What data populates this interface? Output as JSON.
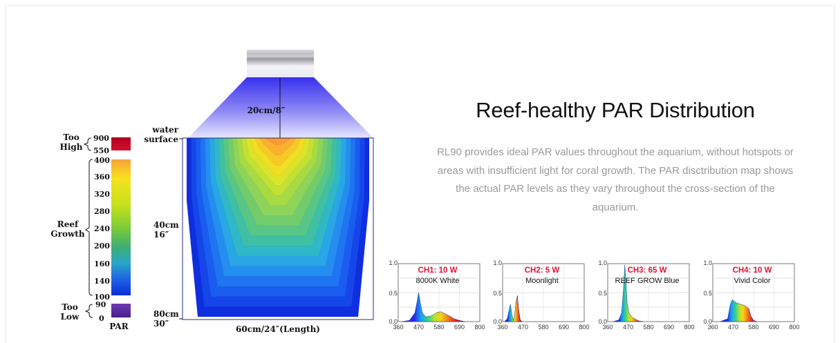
{
  "heading": "Reef-healthy PAR Distribution",
  "description": "RL90 provides ideal PAR values throughout the aquarium, without hotspots or areas with insufficient light for coral growth. The PAR disctribution map shows the actual PAR levels as they vary throughout the cross-section of the aquarium.",
  "scale": {
    "too_high": [
      "Too",
      "High"
    ],
    "reef_growth": [
      "Reef",
      "Growth"
    ],
    "too_low": [
      "Too",
      "Low"
    ],
    "par_label": "PAR",
    "high_ticks": [
      "900",
      "550"
    ],
    "growth_ticks": [
      "400",
      "360",
      "320",
      "280",
      "240",
      "200",
      "160",
      "140",
      "100"
    ],
    "low_ticks": [
      "90",
      "0"
    ]
  },
  "tank": {
    "distance_label": "20cm/8″",
    "water_surface": [
      "water",
      "surface"
    ],
    "depth_mid": [
      "40cm",
      "16″"
    ],
    "depth_bottom": [
      "80cm",
      "30″"
    ],
    "length_label": "60cm/24″(Length)"
  },
  "chart_data": [
    {
      "type": "line",
      "title": "CH1: 10 W",
      "subtitle": "8000K White",
      "x_ticks": [
        "360",
        "470",
        "580",
        "690",
        "800"
      ],
      "y_ticks": [
        "1.0",
        "0.5",
        "0.0"
      ],
      "xlim": [
        360,
        800
      ],
      "ylim": [
        0,
        1.0
      ],
      "x": [
        380,
        420,
        450,
        462,
        470,
        478,
        490,
        510,
        540,
        570,
        590,
        610,
        640,
        660,
        690,
        720
      ],
      "y": [
        0,
        0.02,
        0.15,
        0.35,
        0.5,
        0.35,
        0.15,
        0.08,
        0.1,
        0.16,
        0.17,
        0.14,
        0.09,
        0.05,
        0.02,
        0
      ]
    },
    {
      "type": "line",
      "title": "CH2: 5 W",
      "subtitle": "Moonlight",
      "x_ticks": [
        "360",
        "470",
        "580",
        "690",
        "800"
      ],
      "y_ticks": [
        "1.0",
        "0.5",
        "0.0"
      ],
      "xlim": [
        360,
        800
      ],
      "ylim": [
        0,
        1.0
      ],
      "x": [
        370,
        385,
        395,
        402,
        410,
        418,
        425,
        432,
        440,
        447,
        455,
        465
      ],
      "y": [
        0,
        0.05,
        0.2,
        0.3,
        0.12,
        0.02,
        0.1,
        0.35,
        0.45,
        0.2,
        0.03,
        0
      ]
    },
    {
      "type": "line",
      "title": "CH3: 65 W",
      "subtitle": "REEF GROW Blue",
      "x_ticks": [
        "360",
        "470",
        "580",
        "690",
        "800"
      ],
      "y_ticks": [
        "1.0",
        "0.5",
        "0.0"
      ],
      "xlim": [
        360,
        800
      ],
      "ylim": [
        0,
        1.0
      ],
      "x": [
        390,
        420,
        435,
        445,
        452,
        458,
        465,
        475,
        490,
        510,
        530,
        550
      ],
      "y": [
        0,
        0.03,
        0.15,
        0.55,
        0.98,
        0.7,
        0.3,
        0.15,
        0.08,
        0.04,
        0.01,
        0
      ]
    },
    {
      "type": "line",
      "title": "CH4: 10 W",
      "subtitle": "Vivid Color",
      "x_ticks": [
        "360",
        "470",
        "580",
        "690",
        "800"
      ],
      "y_ticks": [
        "1.0",
        "0.5",
        "0.0"
      ],
      "xlim": [
        360,
        800
      ],
      "ylim": [
        0,
        1.0
      ],
      "x": [
        400,
        440,
        455,
        465,
        475,
        490,
        510,
        530,
        545,
        555,
        565,
        580,
        600
      ],
      "y": [
        0,
        0.05,
        0.3,
        0.38,
        0.35,
        0.32,
        0.3,
        0.28,
        0.25,
        0.22,
        0.1,
        0.02,
        0
      ]
    }
  ]
}
